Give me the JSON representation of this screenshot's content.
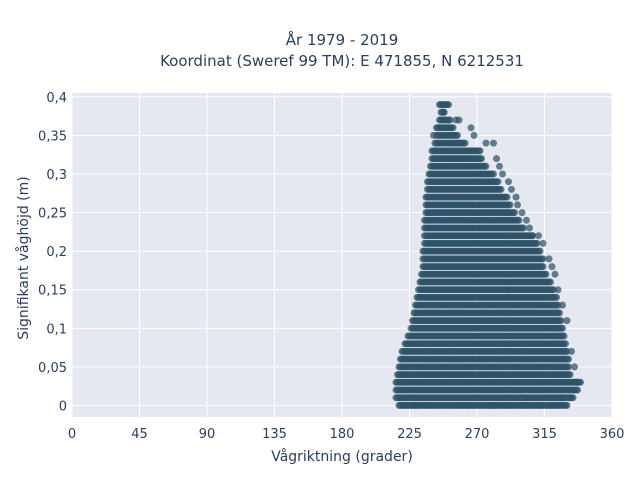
{
  "chart_data": {
    "type": "scatter",
    "title_line1": "År 1979 - 2019",
    "title_line2": "Koordinat (Sweref 99 TM): E 471855, N 6212531",
    "xlabel": "Vågriktning (grader)",
    "ylabel": "Signifikant våghöjd (m)",
    "xlim": [
      0,
      360
    ],
    "ylim": [
      -0.015,
      0.405
    ],
    "x_ticks": [
      0,
      45,
      90,
      135,
      180,
      225,
      270,
      315,
      360
    ],
    "x_tick_labels": [
      "0",
      "45",
      "90",
      "135",
      "180",
      "225",
      "270",
      "315",
      "360"
    ],
    "y_ticks": [
      0,
      0.05,
      0.1,
      0.15,
      0.2,
      0.25,
      0.3,
      0.35,
      0.4
    ],
    "y_tick_labels": [
      "0",
      "0,05",
      "0,1",
      "0,15",
      "0,2",
      "0,25",
      "0,3",
      "0,35",
      "0,4"
    ],
    "grid": true,
    "marker_color": "#2e5266",
    "plot_bg": "#e5e8f1",
    "envelope": {
      "y_step": 0.01,
      "levels": [
        {
          "y": 0.0,
          "x_min": 218,
          "x_max": 330
        },
        {
          "y": 0.01,
          "x_min": 216,
          "x_max": 334
        },
        {
          "y": 0.02,
          "x_min": 216,
          "x_max": 336
        },
        {
          "y": 0.03,
          "x_min": 216,
          "x_max": 338
        },
        {
          "y": 0.04,
          "x_min": 217,
          "x_max": 332
        },
        {
          "y": 0.05,
          "x_min": 218,
          "x_max": 331
        },
        {
          "y": 0.06,
          "x_min": 219,
          "x_max": 331
        },
        {
          "y": 0.07,
          "x_min": 220,
          "x_max": 330
        },
        {
          "y": 0.08,
          "x_min": 222,
          "x_max": 329
        },
        {
          "y": 0.09,
          "x_min": 224,
          "x_max": 328
        },
        {
          "y": 0.1,
          "x_min": 226,
          "x_max": 327
        },
        {
          "y": 0.11,
          "x_min": 227,
          "x_max": 326
        },
        {
          "y": 0.12,
          "x_min": 228,
          "x_max": 325
        },
        {
          "y": 0.13,
          "x_min": 229,
          "x_max": 324
        },
        {
          "y": 0.14,
          "x_min": 230,
          "x_max": 323
        },
        {
          "y": 0.15,
          "x_min": 231,
          "x_max": 321
        },
        {
          "y": 0.16,
          "x_min": 232,
          "x_max": 319
        },
        {
          "y": 0.17,
          "x_min": 233,
          "x_max": 316
        },
        {
          "y": 0.18,
          "x_min": 234,
          "x_max": 314
        },
        {
          "y": 0.19,
          "x_min": 234,
          "x_max": 314
        },
        {
          "y": 0.2,
          "x_min": 234,
          "x_max": 312
        },
        {
          "y": 0.21,
          "x_min": 235,
          "x_max": 310
        },
        {
          "y": 0.22,
          "x_min": 235,
          "x_max": 307
        },
        {
          "y": 0.23,
          "x_min": 235,
          "x_max": 301
        },
        {
          "y": 0.24,
          "x_min": 235,
          "x_max": 298
        },
        {
          "y": 0.25,
          "x_min": 236,
          "x_max": 295
        },
        {
          "y": 0.26,
          "x_min": 236,
          "x_max": 292
        },
        {
          "y": 0.27,
          "x_min": 236,
          "x_max": 290
        },
        {
          "y": 0.28,
          "x_min": 237,
          "x_max": 286
        },
        {
          "y": 0.29,
          "x_min": 237,
          "x_max": 284
        },
        {
          "y": 0.3,
          "x_min": 238,
          "x_max": 281
        },
        {
          "y": 0.31,
          "x_min": 239,
          "x_max": 276
        },
        {
          "y": 0.32,
          "x_min": 240,
          "x_max": 272
        },
        {
          "y": 0.33,
          "x_min": 240,
          "x_max": 272
        },
        {
          "y": 0.34,
          "x_min": 242,
          "x_max": 262
        },
        {
          "y": 0.35,
          "x_min": 243,
          "x_max": 257
        },
        {
          "y": 0.36,
          "x_min": 244,
          "x_max": 254
        },
        {
          "y": 0.37,
          "x_min": 245,
          "x_max": 252
        },
        {
          "y": 0.38,
          "x_min": 246,
          "x_max": 248
        },
        {
          "y": 0.39,
          "x_min": 246,
          "x_max": 250
        }
      ]
    },
    "outlier_points": [
      [
        245,
        0.39
      ],
      [
        251,
        0.39
      ],
      [
        248,
        0.38
      ],
      [
        256,
        0.37
      ],
      [
        258,
        0.37
      ],
      [
        243,
        0.36
      ],
      [
        266,
        0.36
      ],
      [
        241,
        0.35
      ],
      [
        268,
        0.35
      ],
      [
        256,
        0.34
      ],
      [
        276,
        0.34
      ],
      [
        281,
        0.34
      ],
      [
        273,
        0.32
      ],
      [
        283,
        0.32
      ],
      [
        285,
        0.31
      ],
      [
        287,
        0.3
      ],
      [
        291,
        0.29
      ],
      [
        293,
        0.28
      ],
      [
        296,
        0.27
      ],
      [
        297,
        0.26
      ],
      [
        300,
        0.25
      ],
      [
        303,
        0.24
      ],
      [
        305,
        0.23
      ],
      [
        307,
        0.22
      ],
      [
        311,
        0.22
      ],
      [
        314,
        0.21
      ],
      [
        318,
        0.19
      ],
      [
        320,
        0.18
      ],
      [
        322,
        0.17
      ],
      [
        324,
        0.15
      ],
      [
        327,
        0.13
      ],
      [
        330,
        0.11
      ],
      [
        333,
        0.07
      ],
      [
        335,
        0.05
      ],
      [
        336,
        0.03
      ],
      [
        339,
        0.03
      ],
      [
        337,
        0.02
      ],
      [
        326,
        0.01
      ],
      [
        292,
        0.0
      ],
      [
        302,
        0.0
      ],
      [
        312,
        0.0
      ],
      [
        320,
        0.0
      ],
      [
        223,
        0.0
      ],
      [
        229,
        0.0
      ],
      [
        238,
        0.0
      ],
      [
        258,
        0.0
      ],
      [
        264,
        0.0
      ],
      [
        279,
        0.0
      ],
      [
        282,
        0.0
      ],
      [
        300,
        0.01
      ]
    ]
  }
}
